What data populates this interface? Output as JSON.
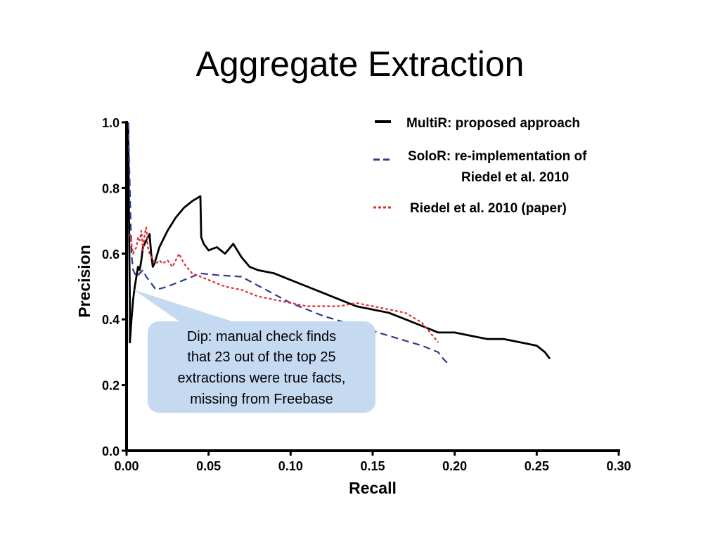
{
  "slide": {
    "title": "Aggregate Extraction"
  },
  "callout": {
    "lines": [
      "Dip: manual check finds",
      "that 23 out of the top 25",
      "extractions were true facts,",
      "missing from Freebase"
    ],
    "fill": "#c5d9f1"
  },
  "chart_data": {
    "type": "line",
    "xlabel": "Recall",
    "ylabel": "Precision",
    "xlim": [
      0,
      0.3
    ],
    "ylim": [
      0,
      1.0
    ],
    "xticks": [
      "0.00",
      "0.05",
      "0.10",
      "0.15",
      "0.20",
      "0.25",
      "0.30"
    ],
    "yticks": [
      "0.0",
      "0.2",
      "0.4",
      "0.6",
      "0.8",
      "1.0"
    ],
    "xtick_values": [
      0,
      0.05,
      0.1,
      0.15,
      0.2,
      0.25,
      0.3
    ],
    "ytick_values": [
      0,
      0.2,
      0.4,
      0.6,
      0.8,
      1.0
    ],
    "grid": false,
    "legend_position": "top-right",
    "series": [
      {
        "name": "MultiR:  proposed approach",
        "color": "#000000",
        "style": "solid",
        "x": [
          0.001,
          0.0015,
          0.002,
          0.002,
          0.003,
          0.004,
          0.005,
          0.006,
          0.007,
          0.008,
          0.009,
          0.01,
          0.012,
          0.014,
          0.015,
          0.016,
          0.017,
          0.02,
          0.025,
          0.03,
          0.035,
          0.04,
          0.045,
          0.0455,
          0.047,
          0.05,
          0.055,
          0.06,
          0.065,
          0.07,
          0.075,
          0.08,
          0.09,
          0.1,
          0.11,
          0.12,
          0.13,
          0.14,
          0.15,
          0.16,
          0.17,
          0.18,
          0.19,
          0.2,
          0.21,
          0.22,
          0.23,
          0.24,
          0.25,
          0.255,
          0.258
        ],
        "y": [
          1.0,
          0.7,
          0.45,
          0.33,
          0.4,
          0.46,
          0.5,
          0.53,
          0.56,
          0.55,
          0.58,
          0.62,
          0.64,
          0.66,
          0.6,
          0.56,
          0.57,
          0.62,
          0.67,
          0.71,
          0.74,
          0.76,
          0.775,
          0.65,
          0.63,
          0.61,
          0.62,
          0.6,
          0.63,
          0.59,
          0.56,
          0.55,
          0.54,
          0.52,
          0.5,
          0.48,
          0.46,
          0.44,
          0.43,
          0.42,
          0.4,
          0.38,
          0.36,
          0.36,
          0.35,
          0.34,
          0.34,
          0.33,
          0.32,
          0.3,
          0.28
        ]
      },
      {
        "name": "SoloR:  re-implementation of Riedel et al. 2010",
        "color": "#2e3a8c",
        "style": "dashed",
        "x": [
          0.001,
          0.002,
          0.003,
          0.004,
          0.006,
          0.008,
          0.01,
          0.012,
          0.015,
          0.018,
          0.025,
          0.035,
          0.045,
          0.055,
          0.07,
          0.085,
          0.1,
          0.12,
          0.14,
          0.16,
          0.18,
          0.19,
          0.193,
          0.196
        ],
        "y": [
          1.0,
          0.8,
          0.6,
          0.55,
          0.53,
          0.54,
          0.55,
          0.53,
          0.51,
          0.49,
          0.5,
          0.52,
          0.54,
          0.535,
          0.53,
          0.49,
          0.45,
          0.41,
          0.38,
          0.35,
          0.32,
          0.3,
          0.28,
          0.265
        ]
      },
      {
        "name": "Riedel et al. 2010 (paper)",
        "color": "#e03030",
        "style": "dotted",
        "x": [
          0.002,
          0.004,
          0.006,
          0.007,
          0.008,
          0.009,
          0.01,
          0.011,
          0.012,
          0.013,
          0.014,
          0.016,
          0.018,
          0.02,
          0.022,
          0.025,
          0.028,
          0.03,
          0.032,
          0.035,
          0.04,
          0.045,
          0.05,
          0.06,
          0.07,
          0.08,
          0.09,
          0.1,
          0.11,
          0.12,
          0.13,
          0.14,
          0.15,
          0.16,
          0.17,
          0.18,
          0.19
        ],
        "y": [
          0.66,
          0.6,
          0.62,
          0.65,
          0.64,
          0.67,
          0.61,
          0.66,
          0.68,
          0.62,
          0.6,
          0.58,
          0.57,
          0.58,
          0.57,
          0.58,
          0.56,
          0.58,
          0.6,
          0.57,
          0.54,
          0.53,
          0.52,
          0.5,
          0.49,
          0.47,
          0.46,
          0.45,
          0.44,
          0.44,
          0.44,
          0.45,
          0.44,
          0.43,
          0.42,
          0.39,
          0.33
        ]
      }
    ]
  }
}
